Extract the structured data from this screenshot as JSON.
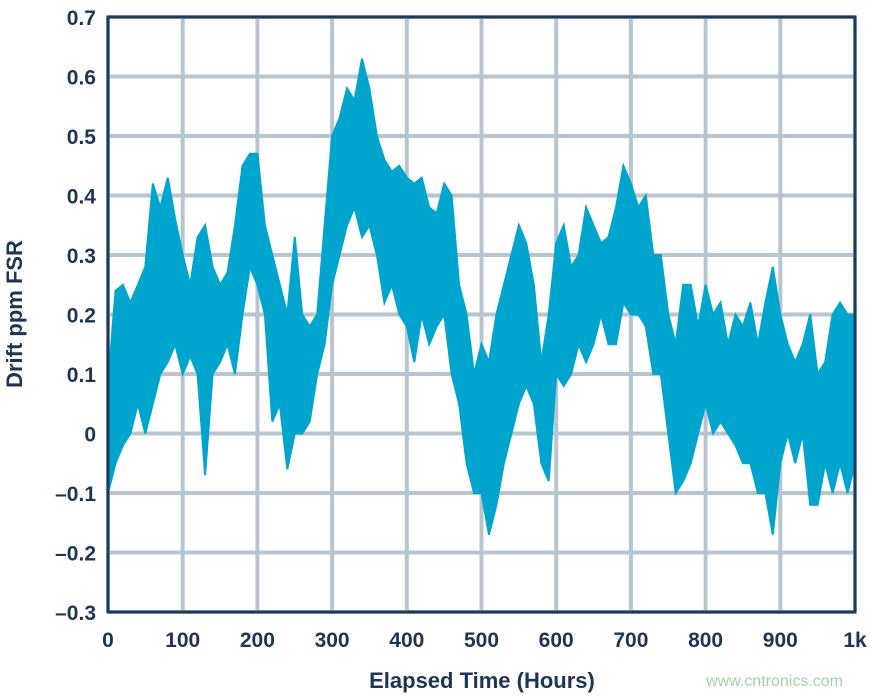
{
  "chart_data": {
    "type": "area",
    "title": "",
    "xlabel": "Elapsed Time (Hours)",
    "ylabel": "Drift ppm FSR",
    "xlim": [
      0,
      1000
    ],
    "ylim": [
      -0.3,
      0.7
    ],
    "grid": true,
    "x_ticks": [
      0,
      100,
      200,
      300,
      400,
      500,
      600,
      700,
      800,
      900,
      1000
    ],
    "x_tick_labels": [
      "0",
      "100",
      "200",
      "300",
      "400",
      "500",
      "600",
      "700",
      "800",
      "900",
      "1k"
    ],
    "y_ticks": [
      -0.3,
      -0.2,
      -0.1,
      0,
      0.1,
      0.2,
      0.3,
      0.4,
      0.5,
      0.6,
      0.7
    ],
    "y_tick_labels": [
      "–0.3",
      "–0.2",
      "–0.1",
      "0",
      "0.1",
      "0.2",
      "0.3",
      "0.4",
      "0.5",
      "0.6",
      "0.7"
    ],
    "series_color": "#00a5ce",
    "series": [
      {
        "x": [
          0,
          10,
          20,
          30,
          40,
          50,
          60,
          70,
          80,
          90,
          100,
          110,
          120,
          130,
          140,
          150,
          160,
          170,
          180,
          190,
          200,
          210,
          220,
          230,
          240,
          250,
          260,
          270,
          280,
          290,
          300,
          310,
          320,
          330,
          340,
          350,
          360,
          370,
          380,
          390,
          400,
          410,
          420,
          430,
          440,
          450,
          460,
          470,
          480,
          490,
          500,
          510,
          520,
          530,
          540,
          550,
          560,
          570,
          580,
          590,
          600,
          610,
          620,
          630,
          640,
          650,
          660,
          670,
          680,
          690,
          700,
          710,
          720,
          730,
          740,
          750,
          760,
          770,
          780,
          790,
          800,
          810,
          820,
          830,
          840,
          850,
          860,
          870,
          880,
          890,
          900,
          910,
          920,
          930,
          940,
          950,
          960,
          970,
          980,
          990,
          1000
        ],
        "upper": [
          0.08,
          0.24,
          0.25,
          0.22,
          0.25,
          0.28,
          0.42,
          0.38,
          0.43,
          0.36,
          0.3,
          0.25,
          0.33,
          0.35,
          0.28,
          0.25,
          0.27,
          0.35,
          0.45,
          0.47,
          0.47,
          0.35,
          0.3,
          0.25,
          0.2,
          0.33,
          0.2,
          0.18,
          0.2,
          0.35,
          0.5,
          0.53,
          0.58,
          0.56,
          0.63,
          0.58,
          0.5,
          0.46,
          0.44,
          0.45,
          0.43,
          0.42,
          0.43,
          0.38,
          0.37,
          0.42,
          0.4,
          0.25,
          0.2,
          0.1,
          0.15,
          0.12,
          0.2,
          0.25,
          0.3,
          0.35,
          0.32,
          0.25,
          0.12,
          0.2,
          0.32,
          0.35,
          0.28,
          0.3,
          0.38,
          0.35,
          0.32,
          0.33,
          0.38,
          0.45,
          0.42,
          0.38,
          0.4,
          0.3,
          0.3,
          0.2,
          0.15,
          0.25,
          0.25,
          0.18,
          0.25,
          0.2,
          0.22,
          0.15,
          0.2,
          0.18,
          0.22,
          0.15,
          0.22,
          0.28,
          0.2,
          0.15,
          0.12,
          0.15,
          0.2,
          0.1,
          0.12,
          0.2,
          0.22,
          0.2,
          0.2
        ],
        "lower": [
          -0.1,
          -0.05,
          -0.02,
          0.0,
          0.05,
          0.0,
          0.05,
          0.1,
          0.12,
          0.15,
          0.1,
          0.13,
          0.1,
          -0.07,
          0.1,
          0.12,
          0.15,
          0.1,
          0.2,
          0.28,
          0.25,
          0.2,
          0.02,
          0.05,
          -0.06,
          0.0,
          0.0,
          0.02,
          0.1,
          0.15,
          0.25,
          0.3,
          0.35,
          0.38,
          0.33,
          0.35,
          0.3,
          0.22,
          0.25,
          0.2,
          0.18,
          0.12,
          0.2,
          0.15,
          0.18,
          0.2,
          0.1,
          0.05,
          -0.05,
          -0.1,
          -0.1,
          -0.17,
          -0.12,
          -0.05,
          0.0,
          0.05,
          0.08,
          0.05,
          -0.05,
          -0.08,
          0.1,
          0.08,
          0.1,
          0.15,
          0.12,
          0.15,
          0.2,
          0.15,
          0.15,
          0.22,
          0.2,
          0.2,
          0.18,
          0.1,
          0.1,
          0.0,
          -0.1,
          -0.08,
          -0.05,
          0.0,
          0.05,
          0.0,
          0.02,
          0.0,
          -0.02,
          -0.05,
          -0.05,
          -0.1,
          -0.1,
          -0.17,
          -0.05,
          0.0,
          -0.05,
          0.0,
          -0.12,
          -0.12,
          -0.05,
          -0.1,
          -0.05,
          -0.1,
          -0.05
        ]
      }
    ]
  },
  "watermark": "www.cntronics.com"
}
